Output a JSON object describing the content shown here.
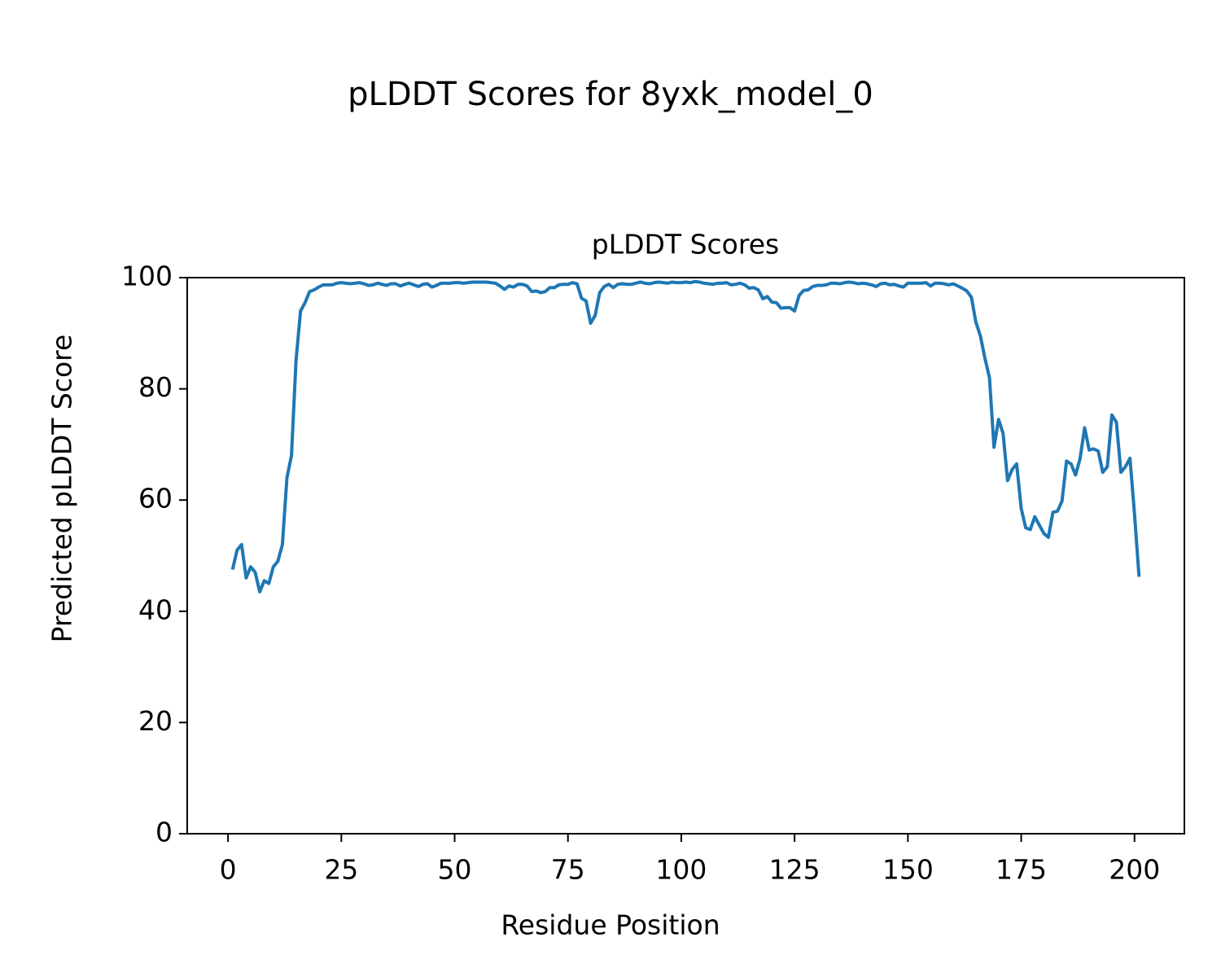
{
  "chart_data": {
    "type": "line",
    "title": "pLDDT Scores for 8yxk_model_0",
    "subtitle": "pLDDT Scores",
    "x_label": "Residue Position",
    "y_label": "Predicted pLDDT Score",
    "color": "#1f77b4",
    "grid": false,
    "xlim": [
      -9,
      211
    ],
    "ylim": [
      0,
      100
    ],
    "xticks": [
      0,
      25,
      50,
      75,
      100,
      125,
      150,
      175,
      200
    ],
    "yticks": [
      0,
      20,
      40,
      60,
      80,
      100
    ],
    "x": [
      1,
      2,
      3,
      4,
      5,
      6,
      7,
      8,
      9,
      10,
      11,
      12,
      13,
      14,
      15,
      16,
      17,
      18,
      19,
      20,
      21,
      22,
      23,
      24,
      25,
      26,
      27,
      28,
      29,
      30,
      31,
      32,
      33,
      34,
      35,
      36,
      37,
      38,
      39,
      40,
      41,
      42,
      43,
      44,
      45,
      46,
      47,
      48,
      49,
      50,
      51,
      52,
      53,
      54,
      55,
      56,
      57,
      58,
      59,
      60,
      61,
      62,
      63,
      64,
      65,
      66,
      67,
      68,
      69,
      70,
      71,
      72,
      73,
      74,
      75,
      76,
      77,
      78,
      79,
      80,
      81,
      82,
      83,
      84,
      85,
      86,
      87,
      88,
      89,
      90,
      91,
      92,
      93,
      94,
      95,
      96,
      97,
      98,
      99,
      100,
      101,
      102,
      103,
      104,
      105,
      106,
      107,
      108,
      109,
      110,
      111,
      112,
      113,
      114,
      115,
      116,
      117,
      118,
      119,
      120,
      121,
      122,
      123,
      124,
      125,
      126,
      127,
      128,
      129,
      130,
      131,
      132,
      133,
      134,
      135,
      136,
      137,
      138,
      139,
      140,
      141,
      142,
      143,
      144,
      145,
      146,
      147,
      148,
      149,
      150,
      151,
      152,
      153,
      154,
      155,
      156,
      157,
      158,
      159,
      160,
      161,
      162,
      163,
      164,
      165,
      166,
      167,
      168,
      169,
      170,
      171,
      172,
      173,
      174,
      175,
      176,
      177,
      178,
      179,
      180,
      181,
      182,
      183,
      184,
      185,
      186,
      187,
      188,
      189,
      190,
      191,
      192,
      193,
      194,
      195,
      196,
      197,
      198,
      199,
      200,
      201
    ],
    "values": [
      47.5,
      51,
      52,
      46,
      48,
      47,
      43.5,
      45.5,
      45,
      48,
      49,
      52,
      64,
      68,
      85,
      94,
      95.5,
      97.5,
      97.8,
      98.3,
      98.7,
      98.7,
      98.7,
      99,
      99.1,
      99,
      98.9,
      99,
      99.1,
      98.9,
      98.6,
      98.7,
      99,
      98.8,
      98.6,
      98.9,
      98.9,
      98.5,
      98.8,
      99,
      98.7,
      98.4,
      98.8,
      98.9,
      98.3,
      98.6,
      99,
      99,
      99,
      99.1,
      99.1,
      99,
      99.1,
      99.2,
      99.2,
      99.2,
      99.2,
      99.1,
      99,
      98.5,
      97.9,
      98.5,
      98.3,
      98.8,
      98.8,
      98.5,
      97.5,
      97.6,
      97.3,
      97.5,
      98.2,
      98.2,
      98.7,
      98.8,
      98.8,
      99.1,
      98.9,
      96.3,
      95.8,
      91.8,
      93.2,
      97.3,
      98.4,
      98.8,
      98.2,
      98.8,
      98.9,
      98.8,
      98.8,
      99,
      99.2,
      99,
      98.9,
      99.1,
      99.2,
      99.1,
      99,
      99.2,
      99.1,
      99.1,
      99.2,
      99.1,
      99.3,
      99.2,
      99,
      98.9,
      98.8,
      99,
      99,
      99.1,
      98.7,
      98.8,
      99,
      98.7,
      98.1,
      98.2,
      97.8,
      96.2,
      96.6,
      95.6,
      95.5,
      94.5,
      94.6,
      94.6,
      94,
      96.8,
      97.7,
      97.8,
      98.4,
      98.6,
      98.6,
      98.7,
      99,
      99,
      98.9,
      99.1,
      99.2,
      99.1,
      98.9,
      99,
      98.9,
      98.7,
      98.4,
      98.9,
      99,
      98.7,
      98.8,
      98.5,
      98.3,
      99,
      99,
      99,
      99,
      99.1,
      98.5,
      99,
      99,
      98.9,
      98.7,
      98.9,
      98.5,
      98.1,
      97.6,
      96.5,
      92,
      89.5,
      85.5,
      82,
      69.5,
      74.5,
      72,
      63.5,
      65.5,
      66.5,
      58.5,
      55,
      54.7,
      57,
      55.5,
      54,
      53.3,
      57.8,
      58,
      59.8,
      67,
      66.5,
      64.5,
      67.5,
      73,
      69,
      69.2,
      68.8,
      65,
      66,
      75.3,
      74,
      65,
      66,
      67.5,
      57.5,
      46.2
    ]
  }
}
